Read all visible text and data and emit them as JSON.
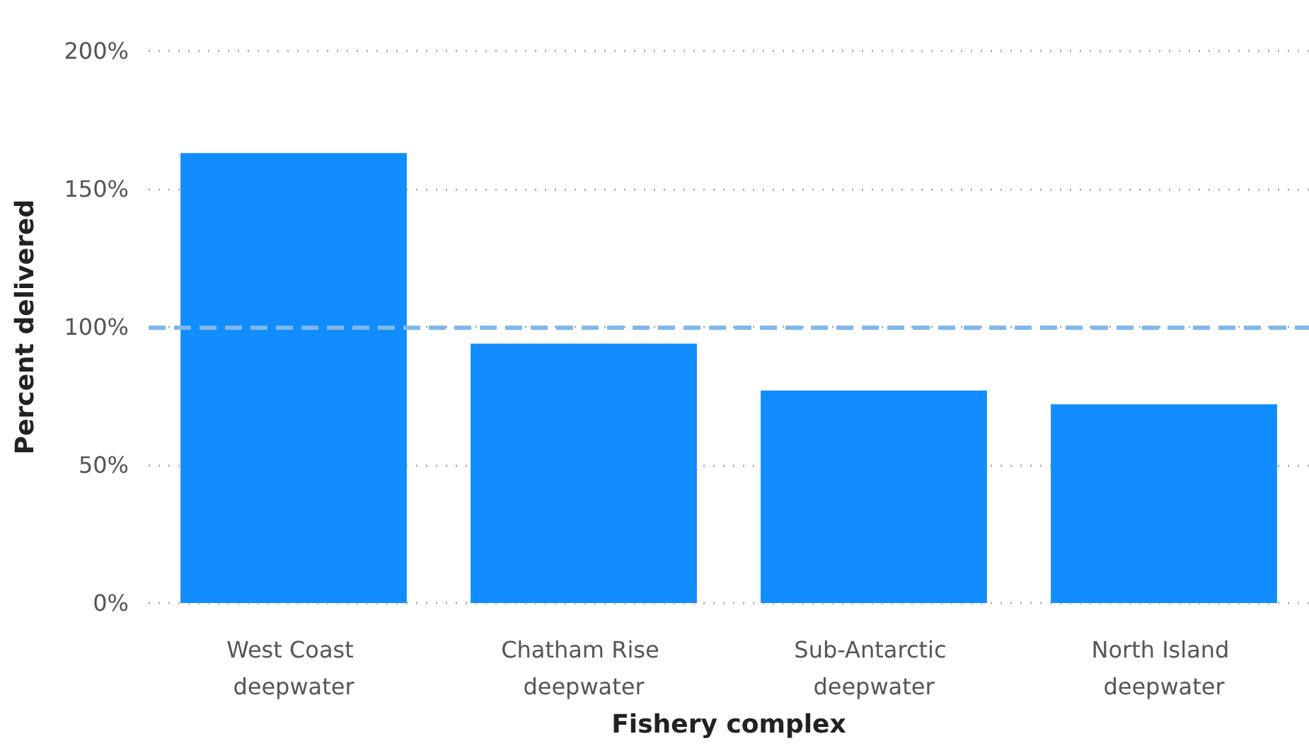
{
  "chart_data": {
    "type": "bar",
    "xlabel": "Fishery complex",
    "ylabel": "Percent delivered",
    "categories": [
      "West Coast deepwater",
      "Chatham Rise deepwater",
      "Sub-Antarctic deepwater",
      "North Island deepwater"
    ],
    "values": [
      163,
      94,
      77,
      72
    ],
    "color": "#118dff",
    "ylim": [
      0,
      200
    ],
    "yticks": [
      {
        "value": 0,
        "label": "0%"
      },
      {
        "value": 50,
        "label": "50%"
      },
      {
        "value": 100,
        "label": "100%"
      },
      {
        "value": 150,
        "label": "150%"
      },
      {
        "value": 200,
        "label": "200%"
      }
    ],
    "grid": "y",
    "ref_lines": [
      {
        "axis": "y",
        "value": 100,
        "color": "#7fb8ea",
        "line_style": "dashed"
      }
    ]
  }
}
